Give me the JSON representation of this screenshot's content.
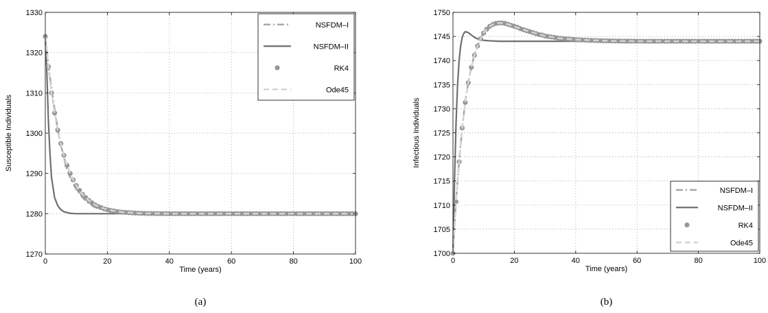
{
  "chart_data": [
    {
      "type": "line",
      "caption": "(a)",
      "xlabel": "Time (years)",
      "ylabel": "Susceptible Individuals",
      "xlim": [
        0,
        100
      ],
      "ylim": [
        1270,
        1330
      ],
      "xticks": [
        0,
        20,
        40,
        60,
        80,
        100
      ],
      "yticks": [
        1270,
        1280,
        1290,
        1300,
        1310,
        1320,
        1330
      ],
      "grid": true,
      "legend_position": "top-right",
      "series": [
        {
          "name": "NSFDM–I",
          "style": "dashdot",
          "color": "#a8a8a8",
          "x": [
            0,
            1,
            2,
            3,
            4,
            5,
            6,
            7,
            8,
            9,
            10,
            12,
            14,
            16,
            18,
            20,
            25,
            30,
            40,
            50,
            60,
            80,
            100
          ],
          "y": [
            1324,
            1317,
            1311,
            1306,
            1301,
            1297,
            1294,
            1291,
            1289,
            1287.5,
            1286,
            1284,
            1282.5,
            1281.6,
            1281.1,
            1280.8,
            1280.3,
            1280.1,
            1280,
            1280,
            1280,
            1280,
            1280
          ]
        },
        {
          "name": "NSFDM–II",
          "style": "solid",
          "color": "#6e6e6e",
          "x": [
            0,
            0.5,
            1,
            1.5,
            2,
            3,
            4,
            5,
            6,
            7,
            8,
            10,
            15,
            20,
            40,
            60,
            80,
            100
          ],
          "y": [
            1324,
            1315,
            1303,
            1295,
            1289,
            1284,
            1282,
            1281,
            1280.5,
            1280.3,
            1280.1,
            1280,
            1280,
            1280,
            1280,
            1280,
            1280,
            1280
          ]
        },
        {
          "name": "RK4",
          "style": "markers",
          "color": "#969696",
          "x": [
            0,
            1,
            2,
            3,
            4,
            5,
            6,
            7,
            8,
            9,
            10,
            11,
            12,
            13,
            14,
            15,
            16,
            17,
            18,
            19,
            20,
            21,
            22,
            23,
            24,
            25,
            26,
            27,
            28,
            29,
            30,
            31,
            32,
            33,
            34,
            35,
            36,
            37,
            38,
            39,
            40,
            41,
            42,
            43,
            44,
            45,
            46,
            47,
            48,
            49,
            50,
            51,
            52,
            53,
            54,
            55,
            56,
            57,
            58,
            59,
            60,
            61,
            62,
            63,
            64,
            65,
            66,
            67,
            68,
            69,
            70,
            71,
            72,
            73,
            74,
            75,
            76,
            77,
            78,
            79,
            80,
            81,
            82,
            83,
            84,
            85,
            86,
            87,
            88,
            89,
            90,
            91,
            92,
            93,
            94,
            95,
            96,
            97,
            98,
            99,
            100
          ],
          "y": [
            1324,
            1316.5,
            1310,
            1305,
            1300.8,
            1297.4,
            1294.5,
            1292,
            1290,
            1288.4,
            1287,
            1285.8,
            1284.8,
            1284,
            1283.3,
            1282.7,
            1282.2,
            1281.8,
            1281.5,
            1281.2,
            1281,
            1280.8,
            1280.7,
            1280.55,
            1280.45,
            1280.37,
            1280.3,
            1280.25,
            1280.2,
            1280.16,
            1280.13,
            1280.1,
            1280.08,
            1280.06,
            1280.05,
            1280.04,
            1280.03,
            1280.02,
            1280.02,
            1280.01,
            1280,
            1280,
            1280,
            1280,
            1280,
            1280,
            1280,
            1280,
            1280,
            1280,
            1280,
            1280,
            1280,
            1280,
            1280,
            1280,
            1280,
            1280,
            1280,
            1280,
            1280,
            1280,
            1280,
            1280,
            1280,
            1280,
            1280,
            1280,
            1280,
            1280,
            1280,
            1280,
            1280,
            1280,
            1280,
            1280,
            1280,
            1280,
            1280,
            1280,
            1280,
            1280,
            1280,
            1280,
            1280,
            1280,
            1280,
            1280,
            1280,
            1280,
            1280,
            1280,
            1280,
            1280,
            1280,
            1280,
            1280,
            1280,
            1280,
            1280,
            1280
          ]
        },
        {
          "name": "Ode45",
          "style": "dashed",
          "color": "#d4d4d4",
          "x": [
            0,
            1,
            2,
            3,
            4,
            5,
            6,
            7,
            8,
            9,
            10,
            12,
            14,
            16,
            18,
            20,
            25,
            30,
            40,
            50,
            60,
            80,
            100
          ],
          "y": [
            1324,
            1316.5,
            1310,
            1305,
            1300.8,
            1297.4,
            1294.5,
            1292,
            1290,
            1288.4,
            1287,
            1284.8,
            1283.3,
            1282.2,
            1281.5,
            1281,
            1280.37,
            1280.13,
            1280,
            1280,
            1280,
            1280,
            1280
          ]
        }
      ]
    },
    {
      "type": "line",
      "caption": "(b)",
      "xlabel": "Time (years)",
      "ylabel": "Infectious Individuals",
      "xlim": [
        0,
        100
      ],
      "ylim": [
        1700,
        1750
      ],
      "xticks": [
        0,
        20,
        40,
        60,
        80,
        100
      ],
      "yticks": [
        1700,
        1705,
        1710,
        1715,
        1720,
        1725,
        1730,
        1735,
        1740,
        1745,
        1750
      ],
      "grid": true,
      "legend_position": "bottom-right",
      "series": [
        {
          "name": "NSFDM–I",
          "style": "dashdot",
          "color": "#a8a8a8",
          "x": [
            0,
            1,
            2,
            3,
            4,
            5,
            6,
            7,
            8,
            9,
            10,
            11,
            12,
            13,
            14,
            15,
            16,
            17,
            18,
            20,
            22,
            25,
            30,
            35,
            40,
            50,
            60,
            70,
            80,
            100
          ],
          "y": [
            1700,
            1711,
            1719,
            1726,
            1731.5,
            1735.5,
            1738.7,
            1741.2,
            1743.1,
            1744.6,
            1745.8,
            1746.6,
            1747.2,
            1747.6,
            1747.8,
            1747.9,
            1747.9,
            1747.8,
            1747.6,
            1747.1,
            1746.6,
            1745.9,
            1745.1,
            1744.6,
            1744.4,
            1744.2,
            1744.1,
            1744,
            1744,
            1744
          ]
        },
        {
          "name": "NSFDM–II",
          "style": "solid",
          "color": "#6e6e6e",
          "x": [
            0,
            0.5,
            1,
            1.5,
            2,
            2.5,
            3,
            3.5,
            4,
            5,
            6,
            7,
            8,
            10,
            12,
            15,
            20,
            40,
            60,
            80,
            100
          ],
          "y": [
            1700,
            1715,
            1727,
            1735,
            1740,
            1743,
            1744.8,
            1745.6,
            1746,
            1745.8,
            1745.3,
            1744.8,
            1744.5,
            1744.2,
            1744.1,
            1744,
            1744,
            1744,
            1744,
            1744,
            1744
          ]
        },
        {
          "name": "RK4",
          "style": "markers",
          "color": "#969696",
          "x": [
            0,
            1,
            2,
            3,
            4,
            5,
            6,
            7,
            8,
            9,
            10,
            11,
            12,
            13,
            14,
            15,
            16,
            17,
            18,
            19,
            20,
            21,
            22,
            23,
            24,
            25,
            26,
            27,
            28,
            29,
            30,
            31,
            32,
            33,
            34,
            35,
            36,
            37,
            38,
            39,
            40,
            41,
            42,
            43,
            44,
            45,
            46,
            47,
            48,
            49,
            50,
            51,
            52,
            53,
            54,
            55,
            56,
            57,
            58,
            59,
            60,
            61,
            62,
            63,
            64,
            65,
            66,
            67,
            68,
            69,
            70,
            71,
            72,
            73,
            74,
            75,
            76,
            77,
            78,
            79,
            80,
            81,
            82,
            83,
            84,
            85,
            86,
            87,
            88,
            89,
            90,
            91,
            92,
            93,
            94,
            95,
            96,
            97,
            98,
            99,
            100
          ],
          "y": [
            1700,
            1710.7,
            1719,
            1726,
            1731.3,
            1735.4,
            1738.6,
            1741.1,
            1743,
            1744.5,
            1745.7,
            1746.5,
            1747.1,
            1747.5,
            1747.7,
            1747.8,
            1747.8,
            1747.7,
            1747.5,
            1747.3,
            1747.1,
            1746.9,
            1746.6,
            1746.4,
            1746.2,
            1746,
            1745.8,
            1745.6,
            1745.4,
            1745.3,
            1745.1,
            1745,
            1744.9,
            1744.8,
            1744.7,
            1744.6,
            1744.55,
            1744.5,
            1744.45,
            1744.4,
            1744.35,
            1744.3,
            1744.27,
            1744.24,
            1744.21,
            1744.18,
            1744.16,
            1744.14,
            1744.12,
            1744.1,
            1744.09,
            1744.08,
            1744.07,
            1744.06,
            1744.05,
            1744.04,
            1744.03,
            1744.03,
            1744.02,
            1744.02,
            1744.01,
            1744.01,
            1744.01,
            1744,
            1744,
            1744,
            1744,
            1744,
            1744,
            1744,
            1744,
            1744,
            1744,
            1744,
            1744,
            1744,
            1744,
            1744,
            1744,
            1744,
            1744,
            1744,
            1744,
            1744,
            1744,
            1744,
            1744,
            1744,
            1744,
            1744,
            1744,
            1744,
            1744,
            1744,
            1744,
            1744,
            1744,
            1744,
            1744,
            1744,
            1744
          ]
        },
        {
          "name": "Ode45",
          "style": "dashed",
          "color": "#d4d4d4",
          "x": [
            0,
            1,
            2,
            3,
            4,
            5,
            6,
            7,
            8,
            9,
            10,
            11,
            12,
            13,
            14,
            15,
            16,
            17,
            18,
            20,
            22,
            25,
            30,
            35,
            40,
            50,
            60,
            70,
            80,
            100
          ],
          "y": [
            1700,
            1710.7,
            1719,
            1726,
            1731.3,
            1735.4,
            1738.6,
            1741.1,
            1743,
            1744.5,
            1745.7,
            1746.5,
            1747.1,
            1747.5,
            1747.7,
            1747.8,
            1747.8,
            1747.7,
            1747.5,
            1747.1,
            1746.6,
            1746,
            1745.1,
            1744.6,
            1744.35,
            1744.1,
            1744.01,
            1744,
            1744,
            1744
          ]
        }
      ]
    }
  ]
}
